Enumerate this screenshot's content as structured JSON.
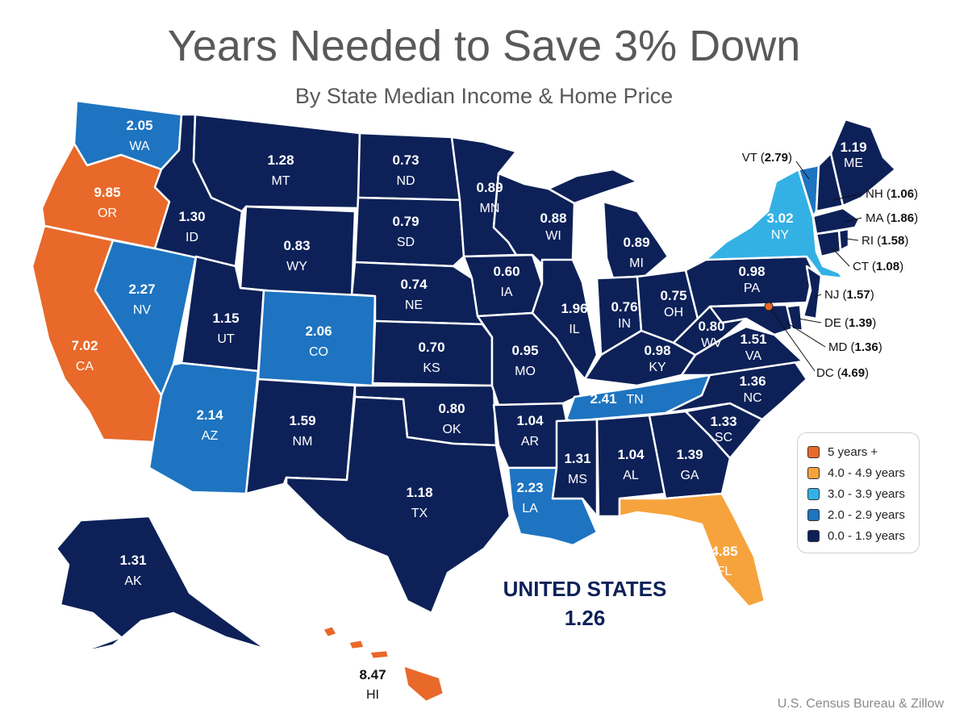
{
  "title": "Years Needed to Save 3% Down",
  "subtitle": "By State Median Income & Home Price",
  "national": {
    "label": "UNITED STATES",
    "value": "1.26"
  },
  "source": "U.S. Census Bureau & Zillow",
  "legend": [
    {
      "label": "5 years +",
      "color": "#e8692a"
    },
    {
      "label": "4.0 - 4.9 years",
      "color": "#f7a33d"
    },
    {
      "label": "3.0 - 3.9 years",
      "color": "#33b1e5"
    },
    {
      "label": "2.0 - 2.9 years",
      "color": "#1e74c0"
    },
    {
      "label": "0.0 - 1.9 years",
      "color": "#0d2158"
    }
  ],
  "colors": {
    "dark": "#0d2158",
    "mid": "#1e74c0",
    "light": "#33b1e5",
    "yellow": "#f7a33d",
    "orange": "#e8692a"
  },
  "states": [
    {
      "abbr": "WA",
      "value": "2.05",
      "tier": "mid"
    },
    {
      "abbr": "OR",
      "value": "9.85",
      "tier": "orange"
    },
    {
      "abbr": "CA",
      "value": "7.02",
      "tier": "orange"
    },
    {
      "abbr": "NV",
      "value": "2.27",
      "tier": "mid"
    },
    {
      "abbr": "ID",
      "value": "1.30",
      "tier": "dark"
    },
    {
      "abbr": "MT",
      "value": "1.28",
      "tier": "dark"
    },
    {
      "abbr": "WY",
      "value": "0.83",
      "tier": "dark"
    },
    {
      "abbr": "UT",
      "value": "1.15",
      "tier": "dark"
    },
    {
      "abbr": "AZ",
      "value": "2.14",
      "tier": "mid"
    },
    {
      "abbr": "CO",
      "value": "2.06",
      "tier": "mid"
    },
    {
      "abbr": "NM",
      "value": "1.59",
      "tier": "dark"
    },
    {
      "abbr": "ND",
      "value": "0.73",
      "tier": "dark"
    },
    {
      "abbr": "SD",
      "value": "0.79",
      "tier": "dark"
    },
    {
      "abbr": "NE",
      "value": "0.74",
      "tier": "dark"
    },
    {
      "abbr": "KS",
      "value": "0.70",
      "tier": "dark"
    },
    {
      "abbr": "OK",
      "value": "0.80",
      "tier": "dark"
    },
    {
      "abbr": "TX",
      "value": "1.18",
      "tier": "dark"
    },
    {
      "abbr": "MN",
      "value": "0.89",
      "tier": "dark"
    },
    {
      "abbr": "IA",
      "value": "0.60",
      "tier": "dark"
    },
    {
      "abbr": "MO",
      "value": "0.95",
      "tier": "dark"
    },
    {
      "abbr": "AR",
      "value": "1.04",
      "tier": "dark"
    },
    {
      "abbr": "LA",
      "value": "2.23",
      "tier": "mid"
    },
    {
      "abbr": "WI",
      "value": "0.88",
      "tier": "dark"
    },
    {
      "abbr": "IL",
      "value": "1.96",
      "tier": "dark"
    },
    {
      "abbr": "MI",
      "value": "0.89",
      "tier": "dark"
    },
    {
      "abbr": "IN",
      "value": "0.76",
      "tier": "dark"
    },
    {
      "abbr": "OH",
      "value": "0.75",
      "tier": "dark"
    },
    {
      "abbr": "KY",
      "value": "0.98",
      "tier": "dark"
    },
    {
      "abbr": "TN",
      "value": "2.41",
      "tier": "mid"
    },
    {
      "abbr": "MS",
      "value": "1.31",
      "tier": "dark"
    },
    {
      "abbr": "AL",
      "value": "1.04",
      "tier": "dark"
    },
    {
      "abbr": "GA",
      "value": "1.39",
      "tier": "dark"
    },
    {
      "abbr": "FL",
      "value": "4.85",
      "tier": "yellow"
    },
    {
      "abbr": "SC",
      "value": "1.33",
      "tier": "dark"
    },
    {
      "abbr": "NC",
      "value": "1.36",
      "tier": "dark"
    },
    {
      "abbr": "VA",
      "value": "1.51",
      "tier": "dark"
    },
    {
      "abbr": "WV",
      "value": "0.80",
      "tier": "dark"
    },
    {
      "abbr": "PA",
      "value": "0.98",
      "tier": "dark"
    },
    {
      "abbr": "NY",
      "value": "3.02",
      "tier": "light"
    },
    {
      "abbr": "ME",
      "value": "1.19",
      "tier": "dark"
    },
    {
      "abbr": "AK",
      "value": "1.31",
      "tier": "dark"
    },
    {
      "abbr": "HI",
      "value": "8.47",
      "tier": "orange"
    }
  ],
  "callouts": [
    {
      "abbr": "VT",
      "value": "2.79",
      "tier": "mid"
    },
    {
      "abbr": "NH",
      "value": "1.06",
      "tier": "dark"
    },
    {
      "abbr": "MA",
      "value": "1.86",
      "tier": "dark"
    },
    {
      "abbr": "RI",
      "value": "1.58",
      "tier": "dark"
    },
    {
      "abbr": "CT",
      "value": "1.08",
      "tier": "dark"
    },
    {
      "abbr": "NJ",
      "value": "1.57",
      "tier": "dark"
    },
    {
      "abbr": "DE",
      "value": "1.39",
      "tier": "dark"
    },
    {
      "abbr": "MD",
      "value": "1.36",
      "tier": "dark"
    },
    {
      "abbr": "DC",
      "value": "4.69",
      "tier": "yellow"
    }
  ]
}
